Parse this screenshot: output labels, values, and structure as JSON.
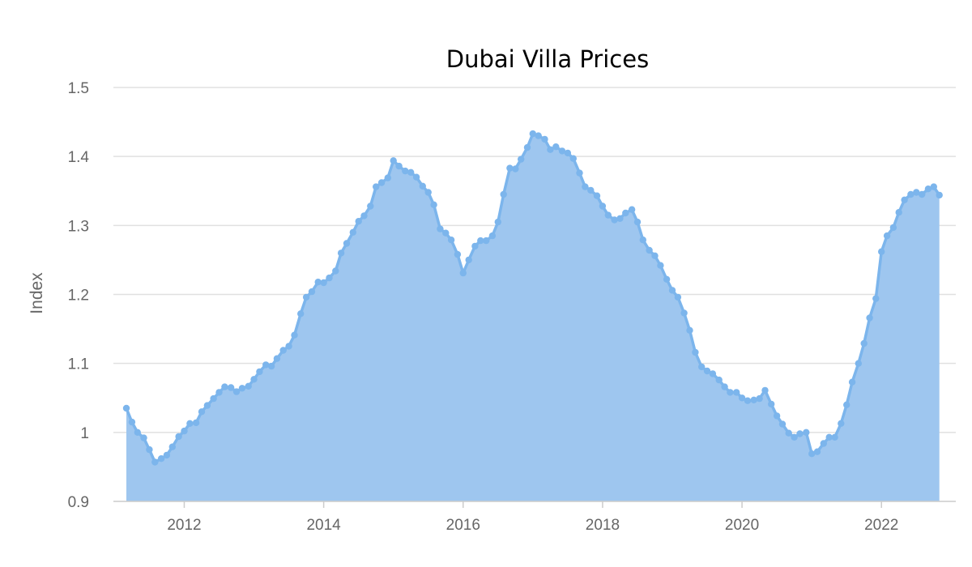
{
  "chart_data": {
    "type": "area",
    "title": "Dubai Villa Prices",
    "xlabel": "",
    "ylabel": "Index",
    "xlim": [
      2011.1,
      2022.95
    ],
    "ylim": [
      0.9,
      1.5
    ],
    "x_ticks": [
      "2012",
      "2014",
      "2016",
      "2018",
      "2020",
      "2022"
    ],
    "y_ticks": [
      "0.9",
      "1",
      "1.1",
      "1.2",
      "1.3",
      "1.4",
      "1.5"
    ],
    "grid": true,
    "colors": {
      "line": "#7cb5ec",
      "area": "#9ec6ef"
    },
    "series": [
      {
        "name": "Index",
        "x": [
          2011.17,
          2011.25,
          2011.33,
          2011.42,
          2011.5,
          2011.58,
          2011.67,
          2011.75,
          2011.83,
          2011.92,
          2012.0,
          2012.08,
          2012.17,
          2012.25,
          2012.33,
          2012.42,
          2012.5,
          2012.58,
          2012.67,
          2012.75,
          2012.83,
          2012.92,
          2013.0,
          2013.08,
          2013.17,
          2013.25,
          2013.33,
          2013.42,
          2013.5,
          2013.58,
          2013.67,
          2013.75,
          2013.83,
          2013.92,
          2014.0,
          2014.08,
          2014.17,
          2014.25,
          2014.33,
          2014.42,
          2014.5,
          2014.58,
          2014.67,
          2014.75,
          2014.83,
          2014.92,
          2015.0,
          2015.08,
          2015.17,
          2015.25,
          2015.33,
          2015.42,
          2015.5,
          2015.58,
          2015.67,
          2015.75,
          2015.83,
          2015.92,
          2016.0,
          2016.08,
          2016.17,
          2016.25,
          2016.33,
          2016.42,
          2016.5,
          2016.58,
          2016.67,
          2016.75,
          2016.83,
          2016.92,
          2017.0,
          2017.08,
          2017.17,
          2017.25,
          2017.33,
          2017.42,
          2017.5,
          2017.58,
          2017.67,
          2017.75,
          2017.83,
          2017.92,
          2018.0,
          2018.08,
          2018.17,
          2018.25,
          2018.33,
          2018.42,
          2018.5,
          2018.58,
          2018.67,
          2018.75,
          2018.83,
          2018.92,
          2019.0,
          2019.08,
          2019.17,
          2019.25,
          2019.33,
          2019.42,
          2019.5,
          2019.58,
          2019.67,
          2019.75,
          2019.83,
          2019.92,
          2020.0,
          2020.08,
          2020.17,
          2020.25,
          2020.33,
          2020.42,
          2020.5,
          2020.58,
          2020.67,
          2020.75,
          2020.83,
          2020.92,
          2021.0,
          2021.08,
          2021.17,
          2021.25,
          2021.33,
          2021.42,
          2021.5,
          2021.58,
          2021.67,
          2021.75,
          2021.83,
          2021.92,
          2022.0,
          2022.08,
          2022.17,
          2022.25,
          2022.33,
          2022.42,
          2022.5,
          2022.58,
          2022.67,
          2022.75,
          2022.83
        ],
        "values": [
          1.035,
          1.015,
          1.0,
          0.992,
          0.975,
          0.957,
          0.962,
          0.967,
          0.979,
          0.994,
          1.002,
          1.013,
          1.014,
          1.03,
          1.039,
          1.049,
          1.058,
          1.066,
          1.065,
          1.059,
          1.064,
          1.067,
          1.077,
          1.088,
          1.098,
          1.096,
          1.107,
          1.119,
          1.125,
          1.141,
          1.172,
          1.196,
          1.204,
          1.218,
          1.217,
          1.224,
          1.234,
          1.26,
          1.274,
          1.29,
          1.306,
          1.314,
          1.328,
          1.356,
          1.362,
          1.369,
          1.394,
          1.386,
          1.379,
          1.377,
          1.37,
          1.357,
          1.348,
          1.33,
          1.295,
          1.289,
          1.279,
          1.258,
          1.231,
          1.25,
          1.27,
          1.278,
          1.278,
          1.285,
          1.305,
          1.345,
          1.383,
          1.382,
          1.396,
          1.413,
          1.433,
          1.43,
          1.425,
          1.41,
          1.414,
          1.408,
          1.405,
          1.397,
          1.376,
          1.356,
          1.351,
          1.343,
          1.328,
          1.315,
          1.308,
          1.31,
          1.318,
          1.323,
          1.305,
          1.279,
          1.264,
          1.256,
          1.242,
          1.222,
          1.206,
          1.196,
          1.173,
          1.148,
          1.116,
          1.095,
          1.089,
          1.085,
          1.076,
          1.066,
          1.058,
          1.058,
          1.05,
          1.046,
          1.047,
          1.049,
          1.061,
          1.041,
          1.024,
          1.012,
          0.999,
          0.993,
          0.998,
          1.0,
          0.969,
          0.972,
          0.984,
          0.993,
          0.993,
          1.013,
          1.04,
          1.073,
          1.1,
          1.129,
          1.166,
          1.194,
          1.262,
          1.285,
          1.297,
          1.319,
          1.337,
          1.345,
          1.348,
          1.345,
          1.353,
          1.356,
          1.344
        ]
      }
    ]
  }
}
